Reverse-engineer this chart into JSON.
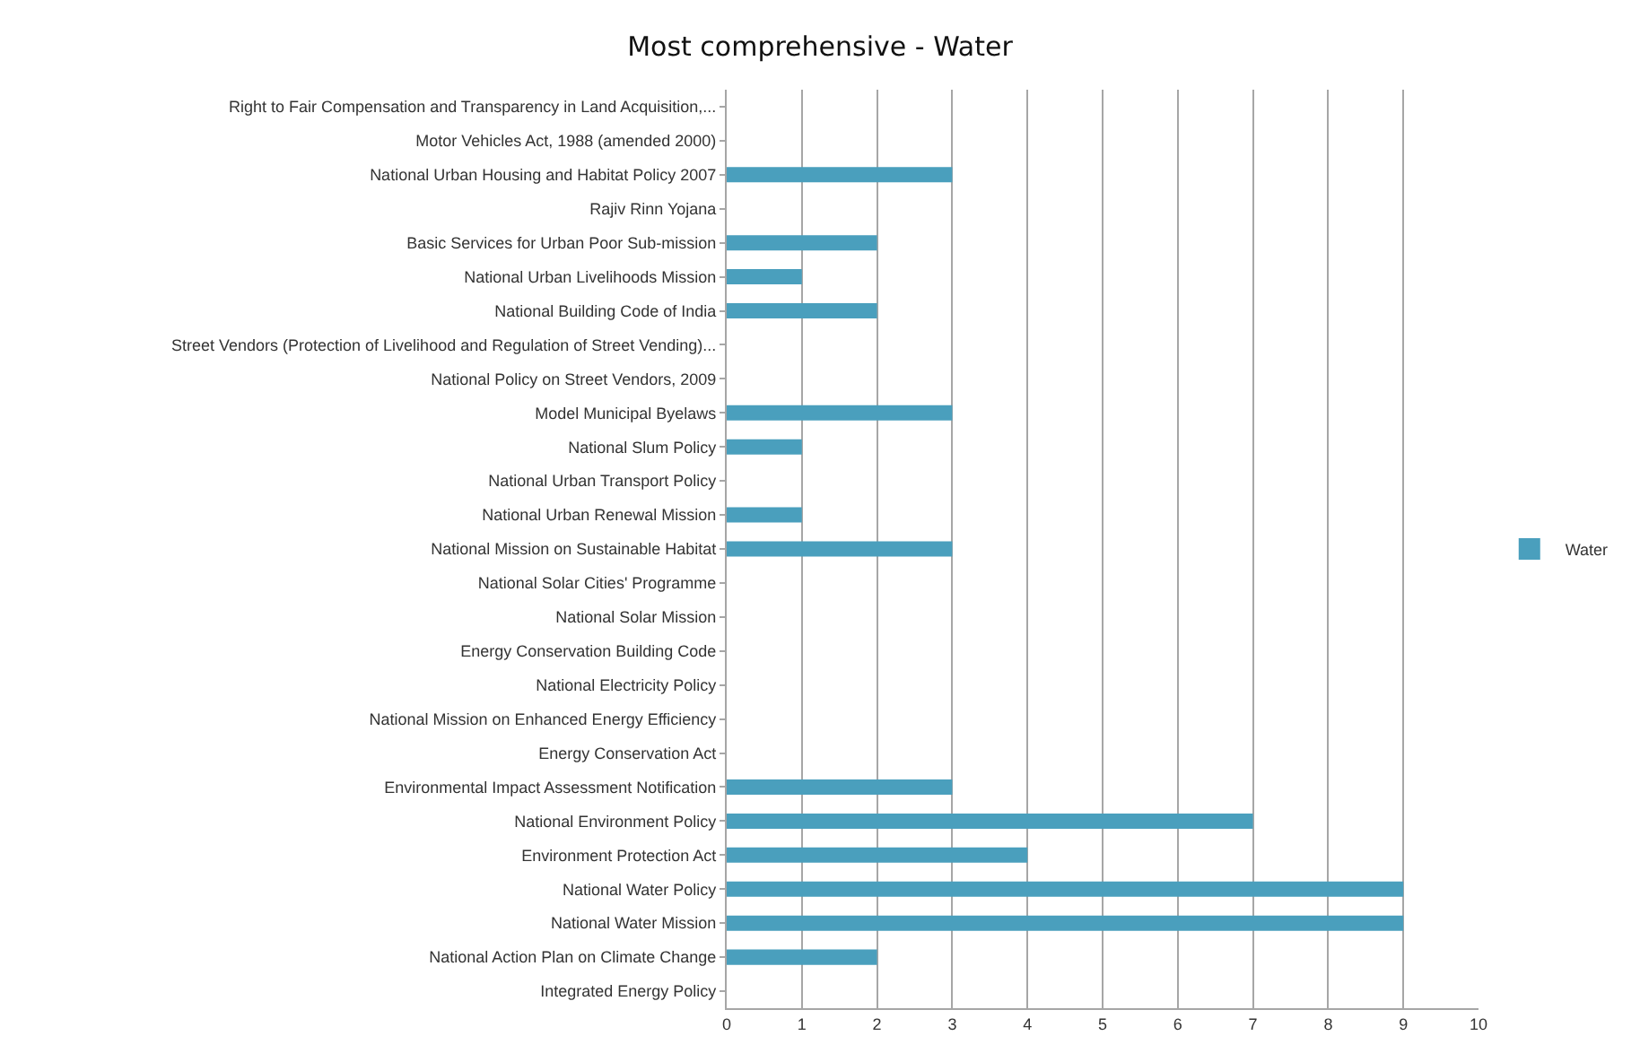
{
  "chart_data": {
    "type": "bar",
    "orientation": "horizontal",
    "title": "Most comprehensive - Water",
    "categories": [
      "Right to Fair Compensation and Transparency in Land Acquisition,...",
      "Motor Vehicles Act, 1988 (amended 2000)",
      "National Urban Housing and Habitat Policy 2007",
      "Rajiv Rinn Yojana",
      "Basic Services for Urban Poor Sub-mission",
      "National Urban Livelihoods Mission",
      "National Building Code of India",
      "Street Vendors (Protection of Livelihood and Regulation of Street Vending)...",
      "National Policy on Street Vendors, 2009",
      "Model Municipal Byelaws",
      "National Slum Policy",
      "National Urban Transport Policy",
      "National Urban Renewal Mission",
      "National Mission on Sustainable Habitat",
      "National Solar Cities' Programme",
      "National Solar Mission",
      "Energy Conservation Building Code",
      "National Electricity Policy",
      "National Mission on Enhanced Energy Efficiency",
      "Energy Conservation Act",
      "Environmental Impact Assessment Notification",
      "National Environment Policy",
      "Environment Protection Act",
      "National Water Policy",
      "National Water Mission",
      "National Action Plan on Climate Change",
      "Integrated Energy Policy"
    ],
    "series": [
      {
        "name": "Water",
        "color": "#4a9fbd",
        "values": [
          0,
          0,
          3,
          0,
          2,
          1,
          2,
          0,
          0,
          3,
          1,
          0,
          1,
          3,
          0,
          0,
          0,
          0,
          0,
          0,
          3,
          7,
          4,
          9,
          9,
          2,
          0
        ]
      }
    ],
    "xlim": [
      0,
      10
    ],
    "xticks": [
      0,
      1,
      2,
      3,
      4,
      5,
      6,
      7,
      8,
      9,
      10
    ],
    "grid": "x",
    "legend": "right"
  }
}
